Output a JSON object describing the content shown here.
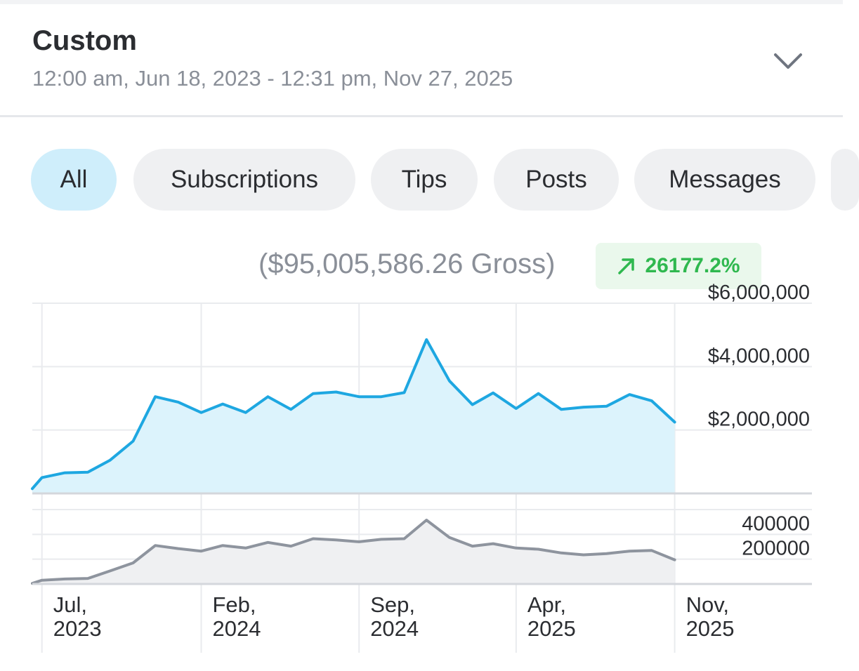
{
  "header": {
    "title": "Custom",
    "date_range": "12:00 am, Jun 18, 2023 - 12:31 pm, Nov 27, 2025",
    "expand_icon": "chevron-down-icon"
  },
  "tabs": [
    {
      "label": "All",
      "active": true
    },
    {
      "label": "Subscriptions",
      "active": false
    },
    {
      "label": "Tips",
      "active": false
    },
    {
      "label": "Posts",
      "active": false
    },
    {
      "label": "Messages",
      "active": false
    }
  ],
  "summary": {
    "gross": "($95,005,586.26 Gross)",
    "change": "26177.2%",
    "change_icon": "arrow-up-right-icon",
    "change_color": "#2fb84f"
  },
  "colors": {
    "earnings_line": "#1ea7e1",
    "earnings_fill": "#dcf3fc",
    "count_line": "#8e949e",
    "count_fill": "#eff0f2"
  },
  "chart_data": {
    "type": "line",
    "x_ticks": [
      {
        "label": [
          "Jul,",
          "2023"
        ],
        "date": "2023-07-01"
      },
      {
        "label": [
          "Feb,",
          "2024"
        ],
        "date": "2024-02-01"
      },
      {
        "label": [
          "Sep,",
          "2024"
        ],
        "date": "2024-09-01"
      },
      {
        "label": [
          "Apr,",
          "2025"
        ],
        "date": "2025-04-01"
      },
      {
        "label": [
          "Nov,",
          "2025"
        ],
        "date": "2025-11-01"
      }
    ],
    "x_range": [
      "2023-06-18",
      "2025-11-27"
    ],
    "top_panel": {
      "series": [
        {
          "values": [
            [
              "2023-06-18",
              150000
            ],
            [
              "2023-07-01",
              500000
            ],
            [
              "2023-08-01",
              650000
            ],
            [
              "2023-09-01",
              670000
            ],
            [
              "2023-10-01",
              1050000
            ],
            [
              "2023-11-01",
              1650000
            ],
            [
              "2023-12-01",
              3050000
            ],
            [
              "2024-01-01",
              2880000
            ],
            [
              "2024-02-01",
              2550000
            ],
            [
              "2024-03-01",
              2820000
            ],
            [
              "2024-04-01",
              2550000
            ],
            [
              "2024-05-01",
              3050000
            ],
            [
              "2024-06-01",
              2650000
            ],
            [
              "2024-07-01",
              3150000
            ],
            [
              "2024-08-01",
              3200000
            ],
            [
              "2024-09-01",
              3050000
            ],
            [
              "2024-10-01",
              3050000
            ],
            [
              "2024-11-01",
              3180000
            ],
            [
              "2024-12-01",
              4850000
            ],
            [
              "2025-01-01",
              3550000
            ],
            [
              "2025-02-01",
              2800000
            ],
            [
              "2025-03-01",
              3170000
            ],
            [
              "2025-04-01",
              2680000
            ],
            [
              "2025-05-01",
              3150000
            ],
            [
              "2025-06-01",
              2650000
            ],
            [
              "2025-07-01",
              2720000
            ],
            [
              "2025-08-01",
              2750000
            ],
            [
              "2025-09-01",
              3120000
            ],
            [
              "2025-10-01",
              2920000
            ],
            [
              "2025-11-01",
              2250000
            ]
          ]
        }
      ],
      "y_ticks": [
        {
          "value": 2000000,
          "label": "$2,000,000"
        },
        {
          "value": 4000000,
          "label": "$4,000,000"
        },
        {
          "value": 6000000,
          "label": "$6,000,000"
        }
      ],
      "ylim": [
        0,
        6000000
      ]
    },
    "bottom_panel": {
      "series": [
        {
          "values": [
            [
              "2023-06-18",
              5000
            ],
            [
              "2023-07-01",
              30000
            ],
            [
              "2023-08-01",
              40000
            ],
            [
              "2023-09-01",
              45000
            ],
            [
              "2023-10-01",
              105000
            ],
            [
              "2023-11-01",
              170000
            ],
            [
              "2023-12-01",
              310000
            ],
            [
              "2024-01-01",
              285000
            ],
            [
              "2024-02-01",
              265000
            ],
            [
              "2024-03-01",
              310000
            ],
            [
              "2024-04-01",
              290000
            ],
            [
              "2024-05-01",
              335000
            ],
            [
              "2024-06-01",
              305000
            ],
            [
              "2024-07-01",
              365000
            ],
            [
              "2024-08-01",
              355000
            ],
            [
              "2024-09-01",
              340000
            ],
            [
              "2024-10-01",
              360000
            ],
            [
              "2024-11-01",
              365000
            ],
            [
              "2024-12-01",
              515000
            ],
            [
              "2025-01-01",
              375000
            ],
            [
              "2025-02-01",
              305000
            ],
            [
              "2025-03-01",
              325000
            ],
            [
              "2025-04-01",
              290000
            ],
            [
              "2025-05-01",
              280000
            ],
            [
              "2025-06-01",
              250000
            ],
            [
              "2025-07-01",
              235000
            ],
            [
              "2025-08-01",
              245000
            ],
            [
              "2025-09-01",
              265000
            ],
            [
              "2025-10-01",
              270000
            ],
            [
              "2025-11-01",
              195000
            ]
          ]
        }
      ],
      "y_ticks": [
        {
          "value": 200000,
          "label": "200000"
        },
        {
          "value": 400000,
          "label": "400000"
        }
      ],
      "ylim": [
        0,
        600000
      ]
    },
    "grid": true,
    "y_axis_position": "right"
  }
}
